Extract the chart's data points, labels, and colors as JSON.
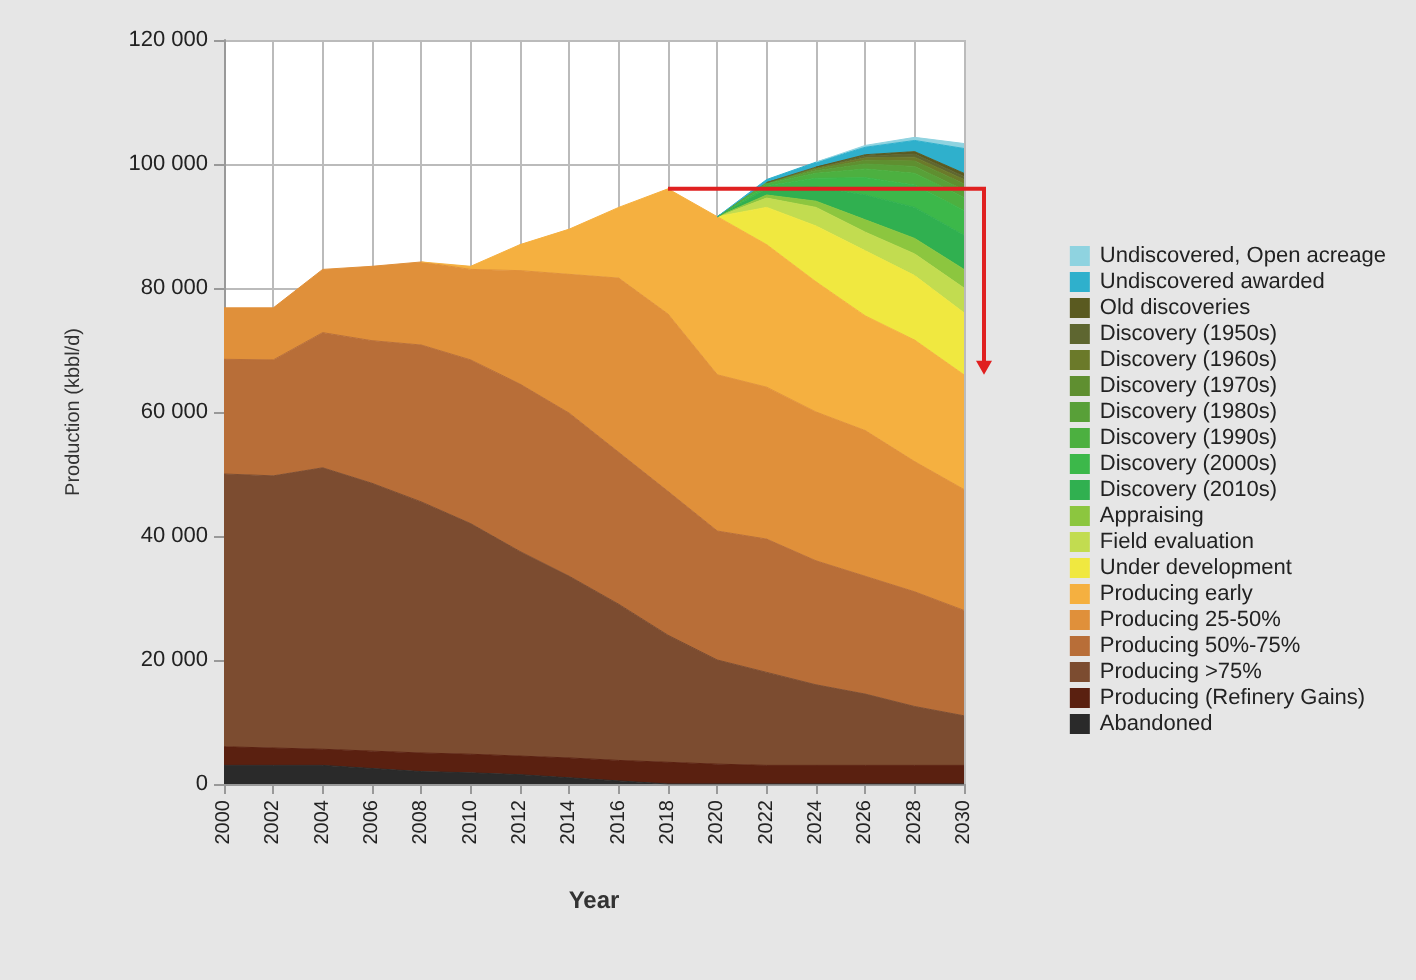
{
  "chart_data": {
    "type": "area",
    "stacked": true,
    "xlabel": "Year",
    "ylabel": "Production (kbbl/d)",
    "x": [
      2000,
      2002,
      2004,
      2006,
      2008,
      2010,
      2012,
      2014,
      2016,
      2018,
      2020,
      2022,
      2024,
      2026,
      2028,
      2030
    ],
    "xlim": [
      2000,
      2030
    ],
    "xticks": [
      2000,
      2002,
      2004,
      2006,
      2008,
      2010,
      2012,
      2014,
      2016,
      2018,
      2020,
      2022,
      2024,
      2026,
      2028,
      2030
    ],
    "ylim": [
      0,
      120000
    ],
    "yticks": [
      {
        "value": 0,
        "label": "0"
      },
      {
        "value": 20000,
        "label": "20 000"
      },
      {
        "value": 40000,
        "label": "40 000"
      },
      {
        "value": 60000,
        "label": "60 000"
      },
      {
        "value": 80000,
        "label": "80 000"
      },
      {
        "value": 100000,
        "label": "100 000"
      },
      {
        "value": 120000,
        "label": "120 000"
      }
    ],
    "grid": true,
    "legend": "right",
    "series": [
      {
        "name": "Abandoned",
        "color": "#2a2a2a",
        "values": [
          3000,
          3000,
          3000,
          2500,
          2000,
          1800,
          1500,
          1000,
          500,
          0,
          0,
          0,
          0,
          0,
          0,
          0
        ]
      },
      {
        "name": "Producing (Refinery Gains)",
        "color": "#5a2010",
        "values": [
          3000,
          2800,
          2600,
          2800,
          3000,
          3000,
          3000,
          3200,
          3300,
          3500,
          3200,
          3000,
          3000,
          3000,
          3000,
          3000
        ]
      },
      {
        "name": "Producing >75%",
        "color": "#7c4c30",
        "values": [
          44000,
          43900,
          45400,
          43200,
          40500,
          37200,
          33000,
          29300,
          25200,
          20500,
          16800,
          15000,
          13000,
          11500,
          9500,
          8000
        ]
      },
      {
        "name": "Producing 50%-75%",
        "color": "#b86e38",
        "values": [
          18500,
          18700,
          21800,
          23000,
          25300,
          26400,
          27000,
          26300,
          24500,
          23200,
          20800,
          21500,
          20000,
          19000,
          18500,
          17000
        ]
      },
      {
        "name": "Producing 25-50%",
        "color": "#e0903a",
        "values": [
          8300,
          8400,
          10200,
          12000,
          13400,
          14600,
          18300,
          22400,
          28100,
          28600,
          25200,
          24500,
          24000,
          23500,
          21000,
          19500
        ]
      },
      {
        "name": "Producing early",
        "color": "#f5b040",
        "values": [
          null,
          null,
          null,
          null,
          0,
          500,
          4200,
          7300,
          11400,
          20200,
          25500,
          23000,
          21000,
          18500,
          19600,
          18500
        ]
      },
      {
        "name": "Under development",
        "color": "#f0e840",
        "values": [
          null,
          null,
          null,
          null,
          null,
          null,
          null,
          null,
          null,
          null,
          0,
          6000,
          9000,
          10500,
          10400,
          10000
        ]
      },
      {
        "name": "Field evaluation",
        "color": "#c2dc50",
        "values": [
          null,
          null,
          null,
          null,
          null,
          null,
          null,
          null,
          null,
          null,
          0,
          1500,
          3000,
          3000,
          3500,
          4000
        ]
      },
      {
        "name": "Appraising",
        "color": "#8cc63f",
        "values": [
          null,
          null,
          null,
          null,
          null,
          null,
          null,
          null,
          null,
          null,
          0,
          500,
          1000,
          2000,
          2500,
          3000
        ]
      },
      {
        "name": "Discovery (2010s)",
        "color": "#30b050",
        "values": [
          null,
          null,
          null,
          null,
          null,
          null,
          null,
          null,
          null,
          null,
          0,
          1000,
          2300,
          4000,
          5000,
          5500
        ]
      },
      {
        "name": "Discovery (2000s)",
        "color": "#3cb84a",
        "values": [
          null,
          null,
          null,
          null,
          null,
          null,
          null,
          null,
          null,
          null,
          0,
          500,
          1400,
          2800,
          3600,
          4000
        ]
      },
      {
        "name": "Discovery (1990s)",
        "color": "#4cb040",
        "values": [
          null,
          null,
          null,
          null,
          null,
          null,
          null,
          null,
          null,
          null,
          0,
          300,
          800,
          1400,
          1900,
          2100
        ]
      },
      {
        "name": "Discovery (1980s)",
        "color": "#58a038",
        "values": [
          null,
          null,
          null,
          null,
          null,
          null,
          null,
          null,
          null,
          null,
          0,
          200,
          400,
          800,
          1100,
          1200
        ]
      },
      {
        "name": "Discovery (1970s)",
        "color": "#5f8f30",
        "values": [
          null,
          null,
          null,
          null,
          null,
          null,
          null,
          null,
          null,
          null,
          null,
          0,
          300,
          600,
          900,
          1000
        ]
      },
      {
        "name": "Discovery (1960s)",
        "color": "#6b7a2a",
        "values": [
          null,
          null,
          null,
          null,
          null,
          null,
          null,
          null,
          null,
          null,
          null,
          0,
          200,
          400,
          600,
          700
        ]
      },
      {
        "name": "Discovery (1950s)",
        "color": "#5e6630",
        "values": [
          null,
          null,
          null,
          null,
          null,
          null,
          null,
          null,
          null,
          null,
          null,
          0,
          100,
          300,
          500,
          500
        ]
      },
      {
        "name": "Old discoveries",
        "color": "#5a5a20",
        "values": [
          null,
          null,
          null,
          null,
          null,
          null,
          null,
          null,
          null,
          null,
          null,
          null,
          0,
          200,
          400,
          500
        ]
      },
      {
        "name": "Undiscovered awarded",
        "color": "#2fb0cc",
        "values": [
          null,
          null,
          null,
          null,
          null,
          null,
          null,
          null,
          null,
          null,
          0,
          500,
          800,
          1200,
          1800,
          4000
        ]
      },
      {
        "name": "Undiscovered, Open acreage",
        "color": "#8fd3e0",
        "values": [
          null,
          null,
          null,
          null,
          null,
          null,
          null,
          null,
          null,
          null,
          null,
          null,
          0,
          300,
          500,
          800
        ]
      }
    ]
  }
}
